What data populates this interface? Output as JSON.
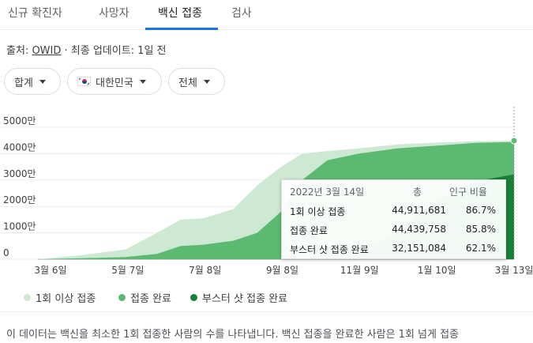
{
  "tabs": [
    {
      "label": "신규 확진자"
    },
    {
      "label": "사망자"
    },
    {
      "label": "백신 접종"
    },
    {
      "label": "검사"
    }
  ],
  "source": {
    "prefix": "출처: ",
    "link": "OWID",
    "suffix": " · 최종 업데이트: 1일 전"
  },
  "filters": {
    "aggregate": "합계",
    "region": "대한민국",
    "scope": "전체",
    "flag_icon": "south-korea-flag-icon"
  },
  "colors": {
    "first_dose": "#cde8d3",
    "fully_vaccinated": "#5cb971",
    "booster": "#188038",
    "tab_accent": "#1a73e8"
  },
  "chart_data": {
    "type": "area",
    "y_ticks": [
      "5000만",
      "4000만",
      "3000만",
      "2000만",
      "1000만",
      "0"
    ],
    "x_ticks": [
      "3월 6일",
      "5월 7일",
      "7월 8일",
      "9월 8일",
      "11월 9일",
      "1월 10일",
      "3월 13일"
    ],
    "ylim": [
      0,
      5000
    ],
    "y_unit": "만",
    "x": [
      "2021-02-26",
      "2021-03-06",
      "2021-04-01",
      "2021-05-07",
      "2021-06-01",
      "2021-06-20",
      "2021-07-08",
      "2021-08-01",
      "2021-08-20",
      "2021-09-08",
      "2021-09-25",
      "2021-10-15",
      "2021-11-09",
      "2021-12-10",
      "2022-01-10",
      "2022-02-10",
      "2022-03-13"
    ],
    "series": [
      {
        "name": "1회 이상 접종",
        "key": "first_dose",
        "values": [
          0,
          40,
          150,
          370,
          1000,
          1500,
          1550,
          1900,
          2800,
          3500,
          4000,
          4100,
          4200,
          4350,
          4420,
          4470,
          4490
        ]
      },
      {
        "name": "접종 완료",
        "key": "fully_vaccinated",
        "values": [
          0,
          5,
          40,
          80,
          200,
          500,
          550,
          700,
          1000,
          1800,
          3000,
          3750,
          4000,
          4200,
          4300,
          4410,
          4440
        ]
      },
      {
        "name": "부스터 샷 접종 완료",
        "key": "booster",
        "values": [
          0,
          0,
          0,
          0,
          0,
          0,
          0,
          0,
          0,
          0,
          0,
          0,
          150,
          1100,
          2200,
          2950,
          3215
        ]
      }
    ],
    "tooltip": {
      "date": "2022년 3월 14일",
      "col_total": "총",
      "col_pct": "인구 비율",
      "rows": [
        {
          "label": "1회 이상 접종",
          "value": "44,911,681",
          "pct": "86.7%"
        },
        {
          "label": "접종 완료",
          "value": "44,439,758",
          "pct": "85.8%"
        },
        {
          "label": "부스터 샷 접종 완료",
          "value": "32,151,084",
          "pct": "62.1%"
        }
      ]
    }
  },
  "note": "이 데이터는 백신을 최소한 1회 접종한 사람의 수를 나타냅니다. 백신 접종을 완료한 사람은 1회 넘게 접종"
}
